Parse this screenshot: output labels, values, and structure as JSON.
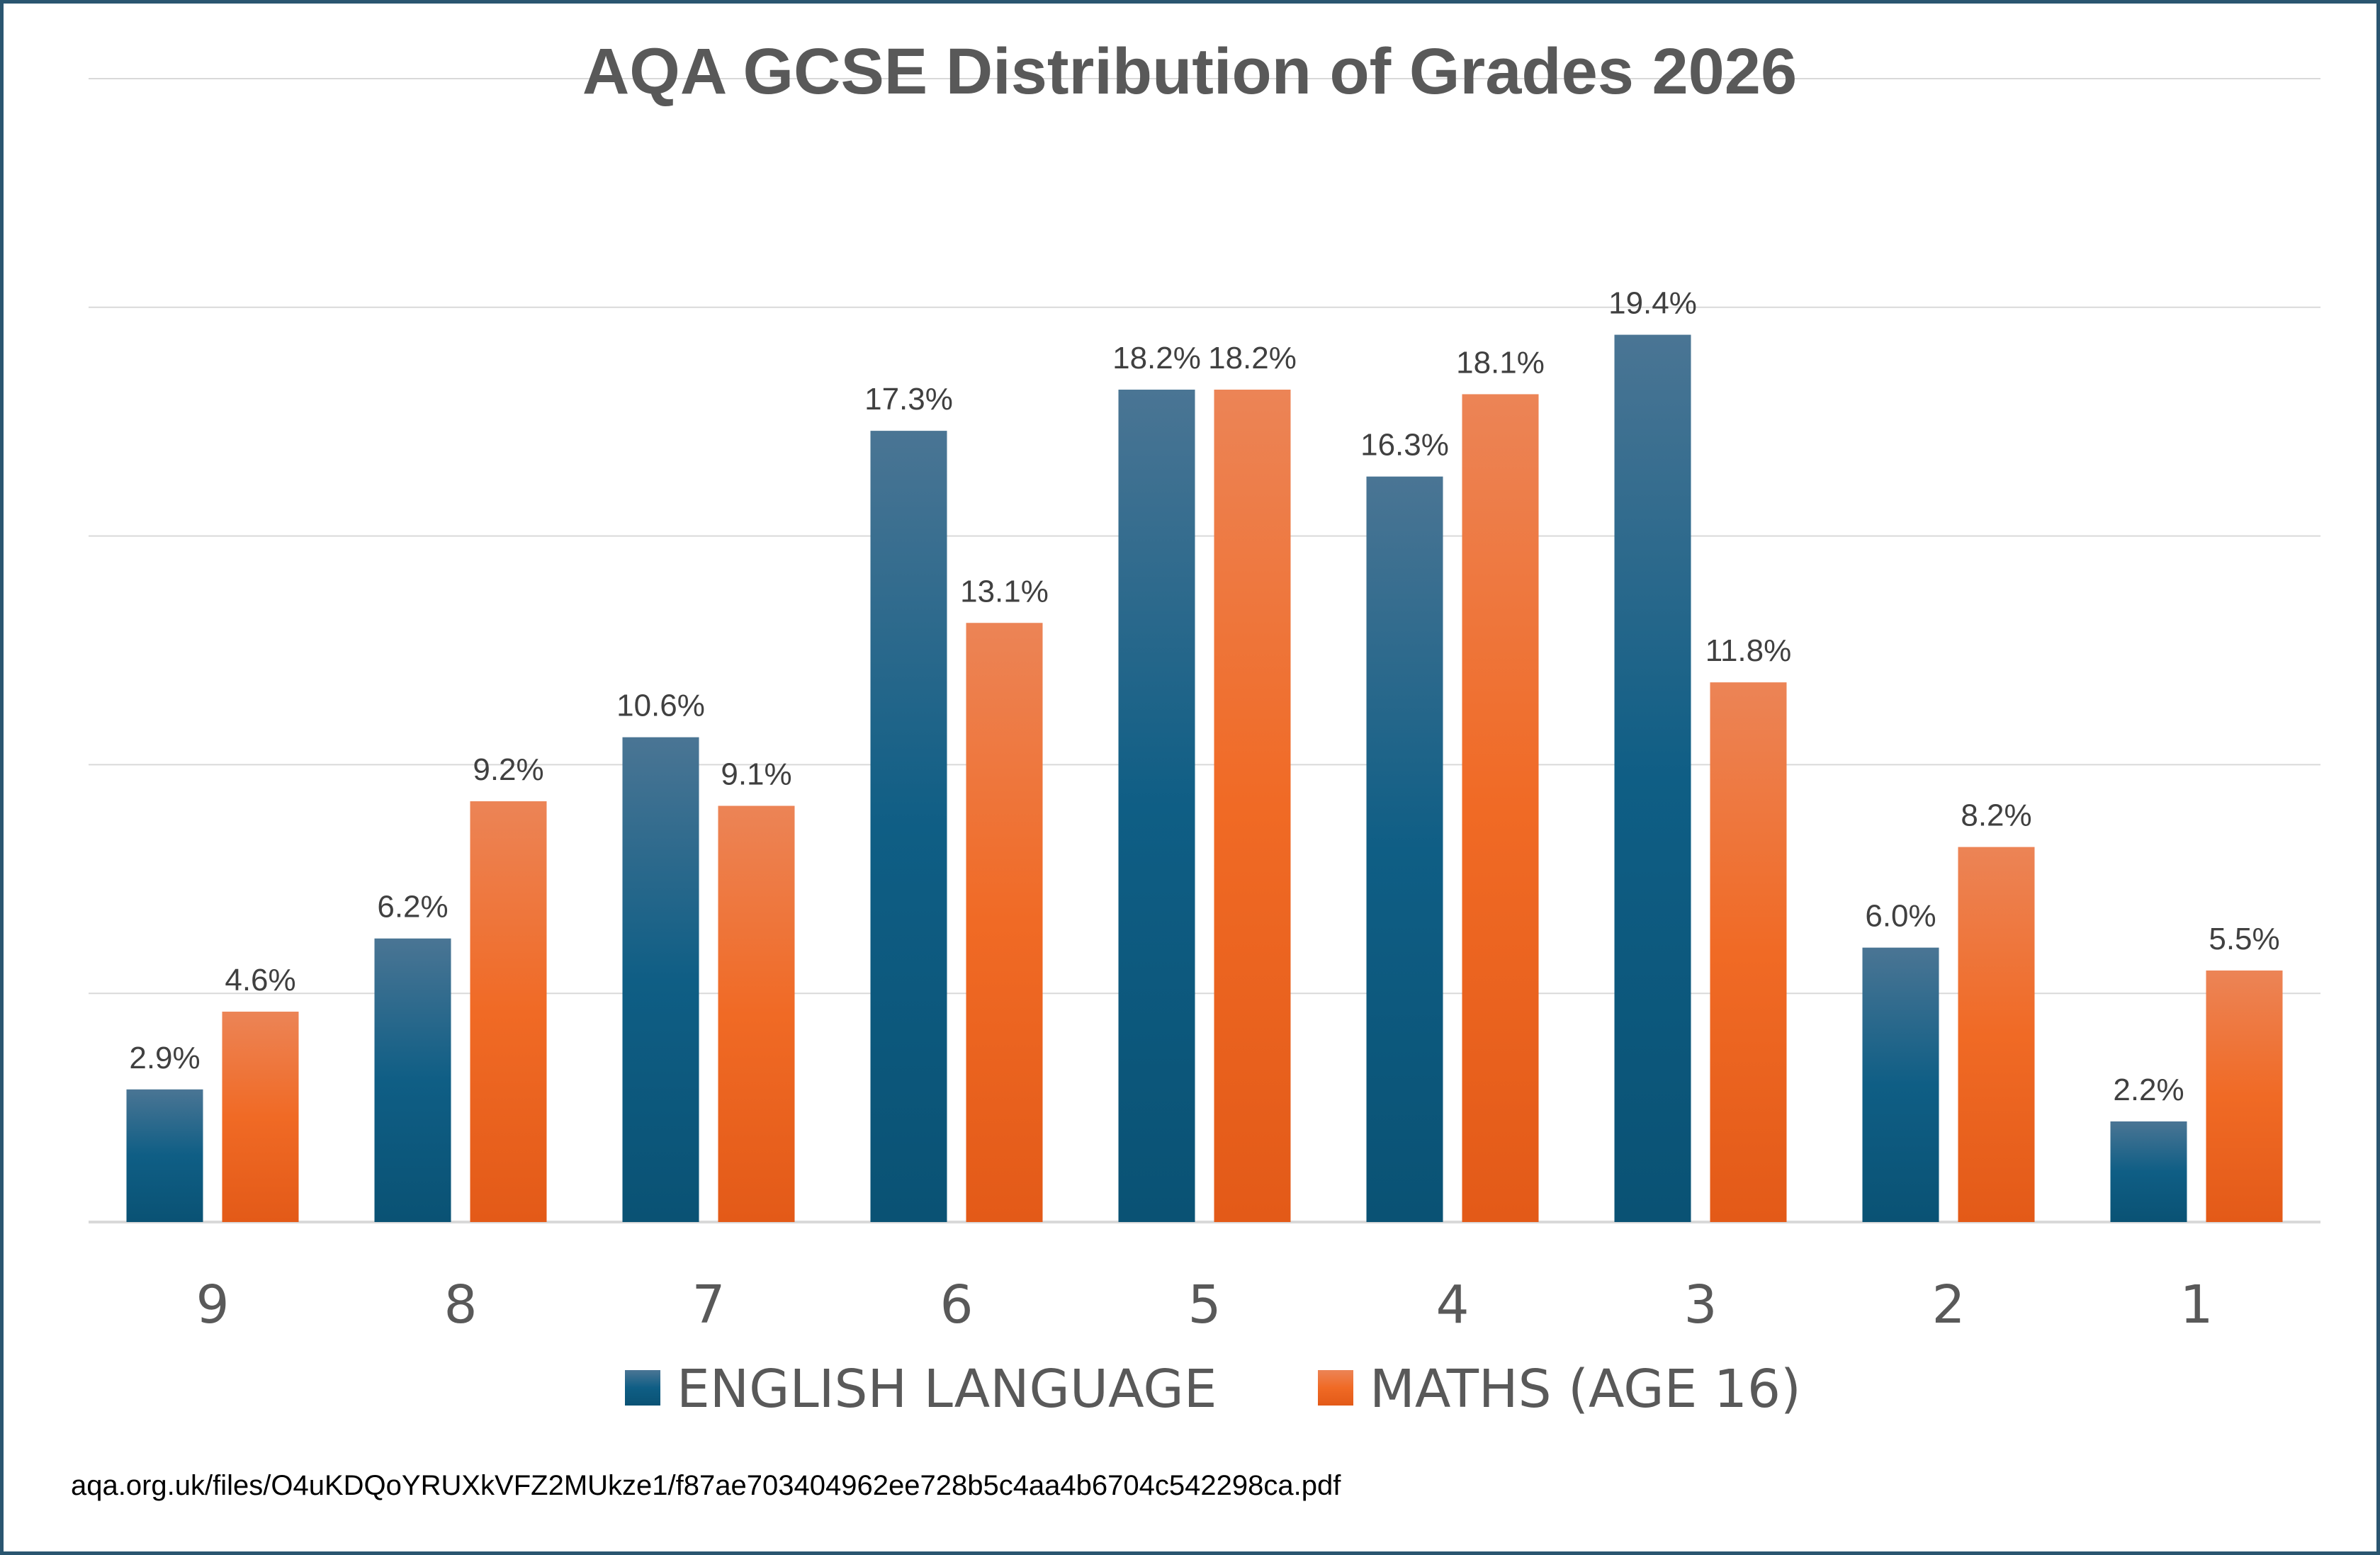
{
  "colors": {
    "english": "#0f5a7e",
    "maths": "#ef6a27",
    "grid": "#d9d9d9",
    "border": "#2a5670"
  },
  "chart_data": {
    "type": "bar",
    "title": "AQA GCSE Distribution of Grades 2026",
    "categories": [
      "9",
      "8",
      "7",
      "6",
      "5",
      "4",
      "3",
      "2",
      "1"
    ],
    "series": [
      {
        "name": "ENGLISH LANGUAGE",
        "values": [
          2.9,
          6.2,
          10.6,
          17.3,
          18.2,
          16.3,
          19.4,
          6.0,
          2.2
        ],
        "labels": [
          "2.9%",
          "6.2%",
          "10.6%",
          "17.3%",
          "18.2%",
          "16.3%",
          "19.4%",
          "6.0%",
          "2.2%"
        ]
      },
      {
        "name": "MATHS (AGE 16)",
        "values": [
          4.6,
          9.2,
          9.1,
          13.1,
          18.2,
          18.1,
          11.8,
          8.2,
          5.5
        ],
        "labels": [
          "4.6%",
          "9.2%",
          "9.1%",
          "13.1%",
          "18.2%",
          "18.1%",
          "11.8%",
          "8.2%",
          "5.5%"
        ]
      }
    ],
    "ylim": [
      0,
      25
    ],
    "grid": true,
    "legend_position": "bottom"
  },
  "source": "aqa.org.uk/files/O4uKDQoYRUXkVFZ2MUkze1/f87ae703404962ee728b5c4aa4b6704c542298ca.pdf"
}
